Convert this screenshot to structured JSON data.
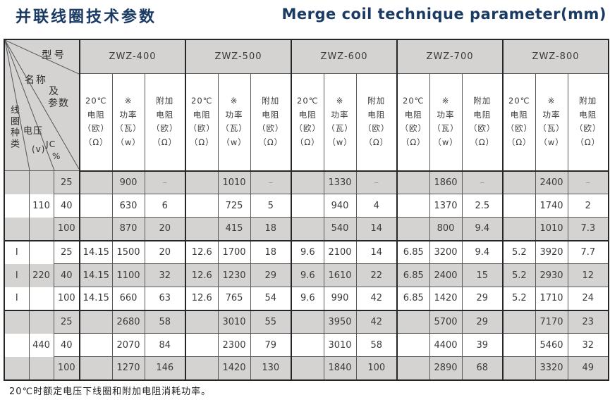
{
  "page": {
    "title_zh": "并联线圈技术参数",
    "title_en": "Merge coil technique parameter(mm)",
    "footnote": "20℃时额定电压下线圈和附加电阻消耗功率。",
    "accent_color": "#1a3a64",
    "stripe_color": "#d4d3d1"
  },
  "table": {
    "corner": {
      "model_label": "型号",
      "name_label": "名称",
      "and_label": "及",
      "param_label": "参数",
      "coil_type_label": "线圈种类",
      "voltage_label": "电压",
      "voltage_unit": "(v)",
      "jc_label": "JC",
      "jc_unit": "%"
    },
    "model_groups": [
      "ZWZ-400",
      "ZWZ-500",
      "ZWZ-600",
      "ZWZ-700",
      "ZWZ-800"
    ],
    "sub_headers": {
      "resistance": [
        "20℃",
        "电阻",
        "（欧）",
        "（Ω）"
      ],
      "power": [
        "※",
        "功率",
        "（瓦）",
        "（w）"
      ],
      "extra_resistance": [
        "附加",
        "电阻",
        "（欧）",
        "（Ω）"
      ]
    },
    "rows": [
      {
        "coil_type": "",
        "voltage": "",
        "jc": "25",
        "values": [
          [
            "",
            "900",
            "–"
          ],
          [
            "",
            "1010",
            "–"
          ],
          [
            "",
            "1330",
            "–"
          ],
          [
            "",
            "1860",
            "–"
          ],
          [
            "",
            "2400",
            "–"
          ]
        ]
      },
      {
        "coil_type": "",
        "voltage": "110",
        "jc": "40",
        "values": [
          [
            "",
            "630",
            "6"
          ],
          [
            "",
            "725",
            "5"
          ],
          [
            "",
            "940",
            "4"
          ],
          [
            "",
            "1370",
            "2.5"
          ],
          [
            "",
            "1740",
            "2"
          ]
        ]
      },
      {
        "coil_type": "",
        "voltage": "",
        "jc": "100",
        "values": [
          [
            "",
            "870",
            "20"
          ],
          [
            "",
            "415",
            "18"
          ],
          [
            "",
            "540",
            "14"
          ],
          [
            "",
            "800",
            "9.4"
          ],
          [
            "",
            "1010",
            "7.3"
          ]
        ]
      },
      {
        "coil_type": "I",
        "voltage": "",
        "jc": "25",
        "values": [
          [
            "14.15",
            "1500",
            "20"
          ],
          [
            "12.6",
            "1700",
            "18"
          ],
          [
            "9.6",
            "2100",
            "14"
          ],
          [
            "6.85",
            "3200",
            "9.4"
          ],
          [
            "5.2",
            "3920",
            "7.7"
          ]
        ]
      },
      {
        "coil_type": "I",
        "voltage": "220",
        "jc": "40",
        "values": [
          [
            "14.15",
            "1100",
            "32"
          ],
          [
            "12.6",
            "1230",
            "29"
          ],
          [
            "9.6",
            "1610",
            "22"
          ],
          [
            "6.85",
            "2400",
            "15"
          ],
          [
            "5.2",
            "2930",
            "12"
          ]
        ]
      },
      {
        "coil_type": "I",
        "voltage": "",
        "jc": "100",
        "values": [
          [
            "14.15",
            "660",
            "63"
          ],
          [
            "12.6",
            "765",
            "54"
          ],
          [
            "9.6",
            "990",
            "42"
          ],
          [
            "6.85",
            "1420",
            "29"
          ],
          [
            "5.2",
            "1710",
            "24"
          ]
        ]
      },
      {
        "coil_type": "",
        "voltage": "",
        "jc": "25",
        "values": [
          [
            "",
            "2680",
            "58"
          ],
          [
            "",
            "3010",
            "55"
          ],
          [
            "",
            "3950",
            "42"
          ],
          [
            "",
            "5700",
            "29"
          ],
          [
            "",
            "7170",
            "23"
          ]
        ]
      },
      {
        "coil_type": "",
        "voltage": "440",
        "jc": "40",
        "values": [
          [
            "",
            "2070",
            "84"
          ],
          [
            "",
            "2300",
            "79"
          ],
          [
            "",
            "3010",
            "58"
          ],
          [
            "",
            "4400",
            "39"
          ],
          [
            "",
            "5460",
            "32"
          ]
        ]
      },
      {
        "coil_type": "",
        "voltage": "",
        "jc": "100",
        "values": [
          [
            "",
            "1270",
            "146"
          ],
          [
            "",
            "1420",
            "130"
          ],
          [
            "",
            "1840",
            "100"
          ],
          [
            "",
            "2890",
            "68"
          ],
          [
            "",
            "3320",
            "49"
          ]
        ]
      }
    ]
  }
}
